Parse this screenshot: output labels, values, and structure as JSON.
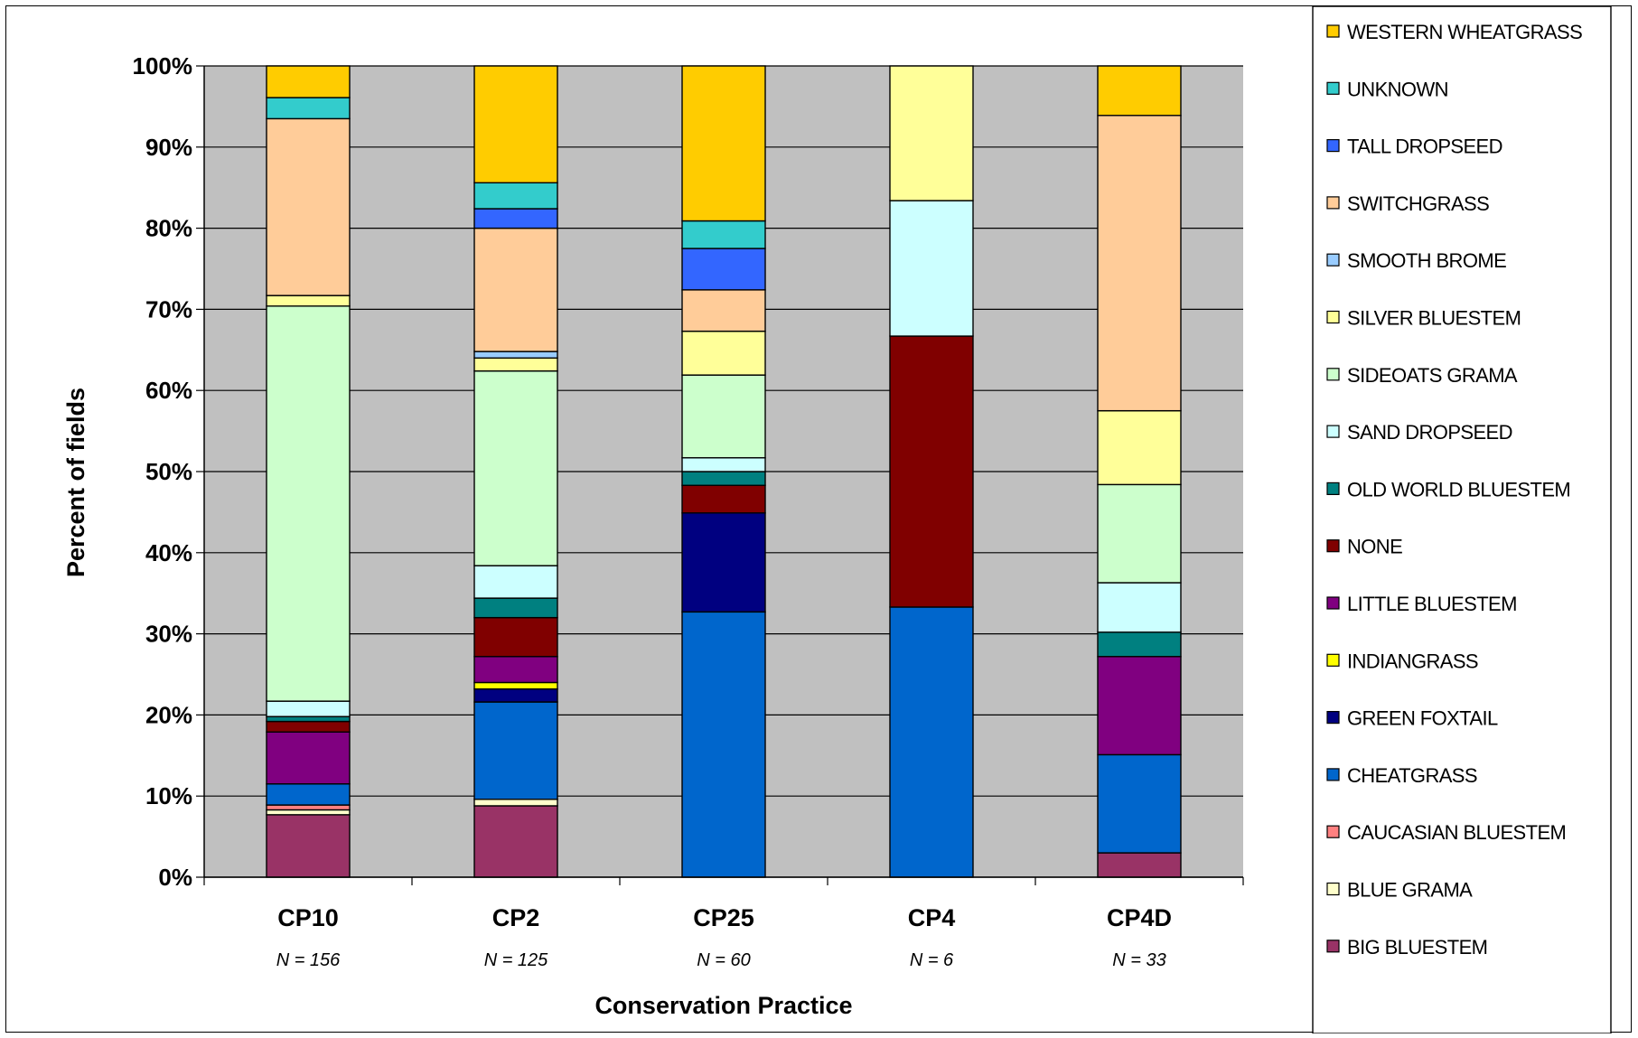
{
  "chart_data": {
    "type": "bar",
    "stacked": true,
    "percent_stacked": true,
    "xlabel": "Conservation Practice",
    "ylabel": "Percent of fields",
    "ylim": [
      0,
      100
    ],
    "yticks": [
      "0%",
      "10%",
      "20%",
      "30%",
      "40%",
      "50%",
      "60%",
      "70%",
      "80%",
      "90%",
      "100%"
    ],
    "grid": true,
    "legend_position": "right",
    "categories": [
      "CP10",
      "CP2",
      "CP25",
      "CP4",
      "CP4D"
    ],
    "sample_sizes": [
      "N = 156",
      "N = 125",
      "N = 60",
      "N = 6",
      "N = 33"
    ],
    "series": [
      {
        "name": "BIG BLUESTEM",
        "color": "#993366",
        "values": [
          7.7,
          8.8,
          0,
          0,
          3.0
        ]
      },
      {
        "name": "BLUE GRAMA",
        "color": "#FFFFCC",
        "values": [
          0.6,
          0.8,
          0,
          0,
          0
        ]
      },
      {
        "name": "CAUCASIAN BLUESTEM",
        "color": "#FF8080",
        "values": [
          0.6,
          0,
          0,
          0,
          0
        ]
      },
      {
        "name": "CHEATGRASS",
        "color": "#0066CC",
        "values": [
          2.6,
          12.0,
          32.7,
          33.3,
          12.1
        ]
      },
      {
        "name": "GREEN FOXTAIL",
        "color": "#000080",
        "values": [
          0,
          1.6,
          12.2,
          0,
          0
        ]
      },
      {
        "name": "INDIANGRASS",
        "color": "#FFFF00",
        "values": [
          0,
          0.8,
          0,
          0,
          0
        ]
      },
      {
        "name": "LITTLE BLUESTEM",
        "color": "#800080",
        "values": [
          6.4,
          3.2,
          0,
          0,
          12.1
        ]
      },
      {
        "name": "NONE",
        "color": "#800000",
        "values": [
          1.3,
          4.8,
          3.4,
          33.4,
          0
        ]
      },
      {
        "name": "OLD WORLD BLUESTEM",
        "color": "#008080",
        "values": [
          0.6,
          2.4,
          1.7,
          0,
          3.0
        ]
      },
      {
        "name": "SAND DROPSEED",
        "color": "#CCFFFF",
        "values": [
          1.9,
          4.0,
          1.7,
          16.7,
          6.1
        ]
      },
      {
        "name": "SIDEOATS GRAMA",
        "color": "#CCFFCC",
        "values": [
          48.7,
          24.0,
          10.2,
          0,
          12.1
        ]
      },
      {
        "name": "SILVER BLUESTEM",
        "color": "#FFFF99",
        "values": [
          1.3,
          1.6,
          5.4,
          16.6,
          9.1
        ]
      },
      {
        "name": "SMOOTH BROME",
        "color": "#99CCFF",
        "values": [
          0,
          0.8,
          0,
          0,
          0
        ]
      },
      {
        "name": "SWITCHGRASS",
        "color": "#FFCC99",
        "values": [
          21.8,
          15.2,
          5.1,
          0,
          36.4
        ]
      },
      {
        "name": "TALL DROPSEED",
        "color": "#3366FF",
        "values": [
          0,
          2.4,
          5.1,
          0,
          0
        ]
      },
      {
        "name": "UNKNOWN",
        "color": "#33CCCC",
        "values": [
          2.6,
          3.2,
          3.4,
          0,
          0
        ]
      },
      {
        "name": "WESTERN WHEATGRASS",
        "color": "#FFCC00",
        "values": [
          3.9,
          14.4,
          19.1,
          0,
          6.1
        ]
      }
    ],
    "colors": {
      "plot_background": "#C0C0C0",
      "gridline": "#000000"
    }
  }
}
